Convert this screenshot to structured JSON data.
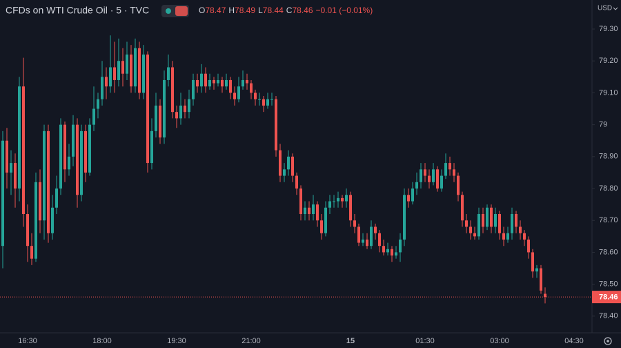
{
  "chart_data": {
    "type": "candlestick",
    "title": "CFDs on WTI Crude Oil · 5 · TVC",
    "currency": "USD",
    "legend": [
      {
        "label": "O",
        "value": "78.47"
      },
      {
        "label": "H",
        "value": "78.49"
      },
      {
        "label": "L",
        "value": "78.44"
      },
      {
        "label": "C",
        "value": "78.46"
      }
    ],
    "change": "−0.01 (−0.01%)",
    "up_color": "#26a69a",
    "down_color": "#ef5350",
    "last_price": 78.46,
    "grid": false,
    "ylim": [
      78.352,
      79.391
    ],
    "yticks": [
      {
        "value": 79.3,
        "label": "79.30"
      },
      {
        "value": 79.2,
        "label": "79.20"
      },
      {
        "value": 79.1,
        "label": "79.10"
      },
      79,
      {
        "value": 78.9,
        "label": "78.90"
      },
      {
        "value": 78.8,
        "label": "78.80"
      },
      {
        "value": 78.7,
        "label": "78.70"
      },
      {
        "value": 78.6,
        "label": "78.60"
      },
      {
        "value": 78.5,
        "label": "78.50"
      },
      {
        "value": 78.4,
        "label": "78.40"
      }
    ],
    "categories": [
      null,
      null,
      null,
      null,
      null,
      null,
      "16:30",
      null,
      null,
      null,
      null,
      null,
      null,
      null,
      null,
      null,
      null,
      null,
      null,
      null,
      null,
      null,
      null,
      null,
      "18:00",
      null,
      null,
      null,
      null,
      null,
      null,
      null,
      null,
      null,
      null,
      null,
      null,
      null,
      null,
      null,
      null,
      null,
      "19:30",
      null,
      null,
      null,
      null,
      null,
      null,
      null,
      null,
      null,
      null,
      null,
      null,
      null,
      null,
      null,
      null,
      null,
      "21:00",
      null,
      null,
      null,
      null,
      null,
      null,
      null,
      null,
      null,
      null,
      null,
      null,
      null,
      null,
      null,
      null,
      null,
      null,
      null,
      null,
      null,
      null,
      null,
      "15",
      null,
      null,
      null,
      null,
      null,
      null,
      null,
      null,
      null,
      null,
      null,
      null,
      null,
      null,
      null,
      null,
      null,
      "01:30",
      null,
      null,
      null,
      null,
      null,
      null,
      null,
      null,
      null,
      null,
      null,
      null,
      null,
      null,
      null,
      null,
      null,
      "03:00",
      null,
      null,
      null,
      null,
      null,
      null,
      null,
      null,
      null,
      null,
      null,
      null,
      null,
      null,
      null,
      null,
      null,
      "04:30"
    ],
    "open": [
      78.62,
      78.95,
      78.85,
      78.88,
      78.8,
      79.12,
      78.72,
      78.62,
      78.58,
      78.82,
      78.7,
      78.98,
      78.66,
      78.74,
      78.8,
      79.0,
      78.86,
      78.9,
      79.0,
      78.78,
      78.98,
      78.85,
      79.0,
      79.05,
      79.08,
      79.15,
      79.12,
      79.18,
      79.14,
      79.2,
      79.16,
      79.22,
      79.12,
      79.24,
      79.1,
      79.22,
      78.88,
      78.98,
      79.06,
      78.96,
      79.14,
      79.18,
      79.04,
      79.02,
      79.06,
      79.04,
      79.08,
      79.14,
      79.12,
      79.16,
      79.12,
      79.14,
      79.13,
      79.14,
      79.12,
      79.14,
      79.1,
      79.08,
      79.12,
      79.14,
      79.13,
      79.1,
      79.08,
      79.08,
      79.06,
      79.08,
      79.08,
      78.92,
      78.84,
      78.86,
      78.9,
      78.84,
      78.8,
      78.72,
      78.74,
      78.72,
      78.75,
      78.7,
      78.66,
      78.74,
      78.76,
      78.76,
      78.77,
      78.76,
      78.78,
      78.7,
      78.68,
      78.63,
      78.64,
      78.62,
      78.68,
      78.66,
      78.62,
      78.6,
      78.61,
      78.59,
      78.6,
      78.64,
      78.78,
      78.76,
      78.8,
      78.82,
      78.86,
      78.84,
      78.82,
      78.86,
      78.8,
      78.84,
      78.88,
      78.86,
      78.84,
      78.78,
      78.7,
      78.68,
      78.66,
      78.65,
      78.72,
      78.68,
      78.74,
      78.68,
      78.72,
      78.66,
      78.64,
      78.66,
      78.72,
      78.68,
      78.66,
      78.64,
      78.6,
      78.54,
      78.55,
      78.47,
      null,
      null,
      null,
      null,
      null,
      null,
      null
    ],
    "high": [
      78.98,
      78.99,
      78.92,
      78.91,
      79.15,
      79.21,
      78.75,
      78.66,
      78.85,
      78.86,
      79.0,
      79.0,
      78.78,
      78.84,
      79.02,
      79.01,
      78.94,
      79.03,
      79.02,
      79.0,
      79.0,
      79.02,
      79.12,
      79.1,
      79.2,
      79.18,
      79.28,
      79.26,
      79.27,
      79.24,
      79.26,
      79.25,
      79.27,
      79.26,
      79.25,
      79.23,
      79.02,
      79.1,
      79.08,
      79.17,
      79.22,
      79.2,
      79.06,
      79.1,
      79.08,
      79.11,
      79.16,
      79.16,
      79.19,
      79.18,
      79.16,
      79.15,
      79.16,
      79.15,
      79.16,
      79.15,
      79.12,
      79.15,
      79.17,
      79.16,
      79.14,
      79.11,
      79.1,
      79.09,
      79.1,
      79.1,
      79.09,
      78.94,
      78.88,
      78.92,
      78.91,
      78.85,
      78.81,
      78.76,
      78.76,
      78.78,
      78.76,
      78.72,
      78.76,
      78.78,
      78.78,
      78.79,
      78.78,
      78.8,
      78.79,
      78.72,
      78.69,
      78.66,
      78.66,
      78.7,
      78.69,
      78.67,
      78.64,
      78.63,
      78.62,
      78.62,
      78.66,
      78.8,
      78.8,
      78.82,
      78.85,
      78.88,
      78.88,
      78.86,
      78.88,
      78.87,
      78.86,
      78.91,
      78.9,
      78.88,
      78.85,
      78.79,
      78.72,
      78.7,
      78.68,
      78.74,
      78.74,
      78.75,
      78.75,
      78.74,
      78.73,
      78.68,
      78.68,
      78.74,
      78.73,
      78.7,
      78.67,
      78.65,
      78.61,
      78.56,
      78.56,
      78.49,
      null,
      null,
      null,
      null,
      null,
      null,
      null
    ],
    "low": [
      78.55,
      78.8,
      78.78,
      78.74,
      78.76,
      78.68,
      78.57,
      78.56,
      78.57,
      78.66,
      78.64,
      78.63,
      78.64,
      78.72,
      78.78,
      78.82,
      78.84,
      78.87,
      78.74,
      78.76,
      78.82,
      78.84,
      78.98,
      79.02,
      79.06,
      79.08,
      79.1,
      79.1,
      79.12,
      79.12,
      79.14,
      79.1,
      79.1,
      79.08,
      79.08,
      78.85,
      78.86,
      78.96,
      78.94,
      78.94,
      79.12,
      79.02,
      78.99,
      79.0,
      79.02,
      79.02,
      79.06,
      79.1,
      79.1,
      79.1,
      79.11,
      79.11,
      79.12,
      79.1,
      79.11,
      79.08,
      79.06,
      79.07,
      79.11,
      79.11,
      79.08,
      79.06,
      79.06,
      79.04,
      79.05,
      79.06,
      78.9,
      78.82,
      78.82,
      78.84,
      78.82,
      78.78,
      78.7,
      78.7,
      78.7,
      78.7,
      78.68,
      78.64,
      78.65,
      78.72,
      78.74,
      78.74,
      78.74,
      78.74,
      78.68,
      78.66,
      78.62,
      78.62,
      78.61,
      78.61,
      78.64,
      78.6,
      78.59,
      78.59,
      78.57,
      78.58,
      78.57,
      78.62,
      78.74,
      78.75,
      78.78,
      78.8,
      78.82,
      78.8,
      78.81,
      78.79,
      78.79,
      78.83,
      78.84,
      78.82,
      78.76,
      78.68,
      78.66,
      78.64,
      78.64,
      78.64,
      78.66,
      78.67,
      78.66,
      78.66,
      78.64,
      78.62,
      78.63,
      78.64,
      78.66,
      78.64,
      78.62,
      78.58,
      78.52,
      78.52,
      78.47,
      78.44,
      null,
      null,
      null,
      null,
      null,
      null,
      null
    ],
    "close": [
      78.95,
      78.85,
      78.88,
      78.8,
      79.12,
      78.72,
      78.62,
      78.58,
      78.82,
      78.7,
      78.98,
      78.66,
      78.74,
      78.8,
      79.0,
      78.86,
      78.9,
      79.0,
      78.78,
      78.98,
      78.85,
      79.0,
      79.05,
      79.08,
      79.15,
      79.12,
      79.18,
      79.14,
      79.2,
      79.16,
      79.22,
      79.12,
      79.24,
      79.1,
      79.22,
      78.88,
      78.98,
      79.06,
      78.96,
      79.14,
      79.18,
      79.04,
      79.02,
      79.06,
      79.04,
      79.08,
      79.14,
      79.12,
      79.16,
      79.12,
      79.14,
      79.13,
      79.14,
      79.12,
      79.14,
      79.1,
      79.08,
      79.12,
      79.14,
      79.13,
      79.1,
      79.08,
      79.08,
      79.06,
      79.08,
      79.08,
      78.92,
      78.84,
      78.86,
      78.9,
      78.84,
      78.8,
      78.72,
      78.74,
      78.72,
      78.75,
      78.7,
      78.66,
      78.74,
      78.76,
      78.76,
      78.77,
      78.76,
      78.78,
      78.7,
      78.68,
      78.63,
      78.64,
      78.62,
      78.68,
      78.66,
      78.62,
      78.6,
      78.61,
      78.59,
      78.6,
      78.64,
      78.78,
      78.76,
      78.8,
      78.82,
      78.86,
      78.84,
      78.82,
      78.86,
      78.8,
      78.84,
      78.88,
      78.86,
      78.84,
      78.78,
      78.7,
      78.68,
      78.66,
      78.65,
      78.72,
      78.68,
      78.74,
      78.68,
      78.72,
      78.66,
      78.64,
      78.66,
      78.72,
      78.68,
      78.66,
      78.64,
      78.6,
      78.54,
      78.55,
      78.48,
      78.46,
      null,
      null,
      null,
      null,
      null,
      null,
      null
    ]
  }
}
